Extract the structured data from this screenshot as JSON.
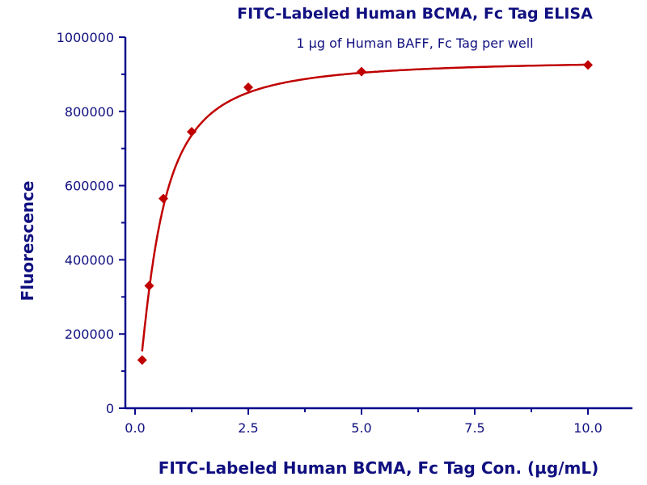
{
  "chart_data": {
    "type": "scatter",
    "title": "FITC-Labeled Human BCMA, Fc Tag ELISA",
    "subtitle": "1 µg of Human BAFF, Fc Tag per well",
    "xlabel": "FITC-Labeled Human BCMA, Fc Tag Con. (µg/mL)",
    "ylabel": "Fluorescence",
    "xlim": [
      0,
      10
    ],
    "ylim": [
      0,
      1000000
    ],
    "xticks": [
      "0.0",
      "2.5",
      "5.0",
      "7.5",
      "10.0"
    ],
    "yticks": [
      "0",
      "200000",
      "400000",
      "600000",
      "800000",
      "1000000"
    ],
    "grid": false,
    "fit_curve": true,
    "x": [
      0.156,
      0.3125,
      0.625,
      1.25,
      2.5,
      5,
      10
    ],
    "y": [
      130000,
      330000,
      565000,
      745000,
      865000,
      907000,
      925000
    ],
    "colors": {
      "axis": "#0a0a8c",
      "text": "#101080",
      "series": "#c00000"
    }
  }
}
